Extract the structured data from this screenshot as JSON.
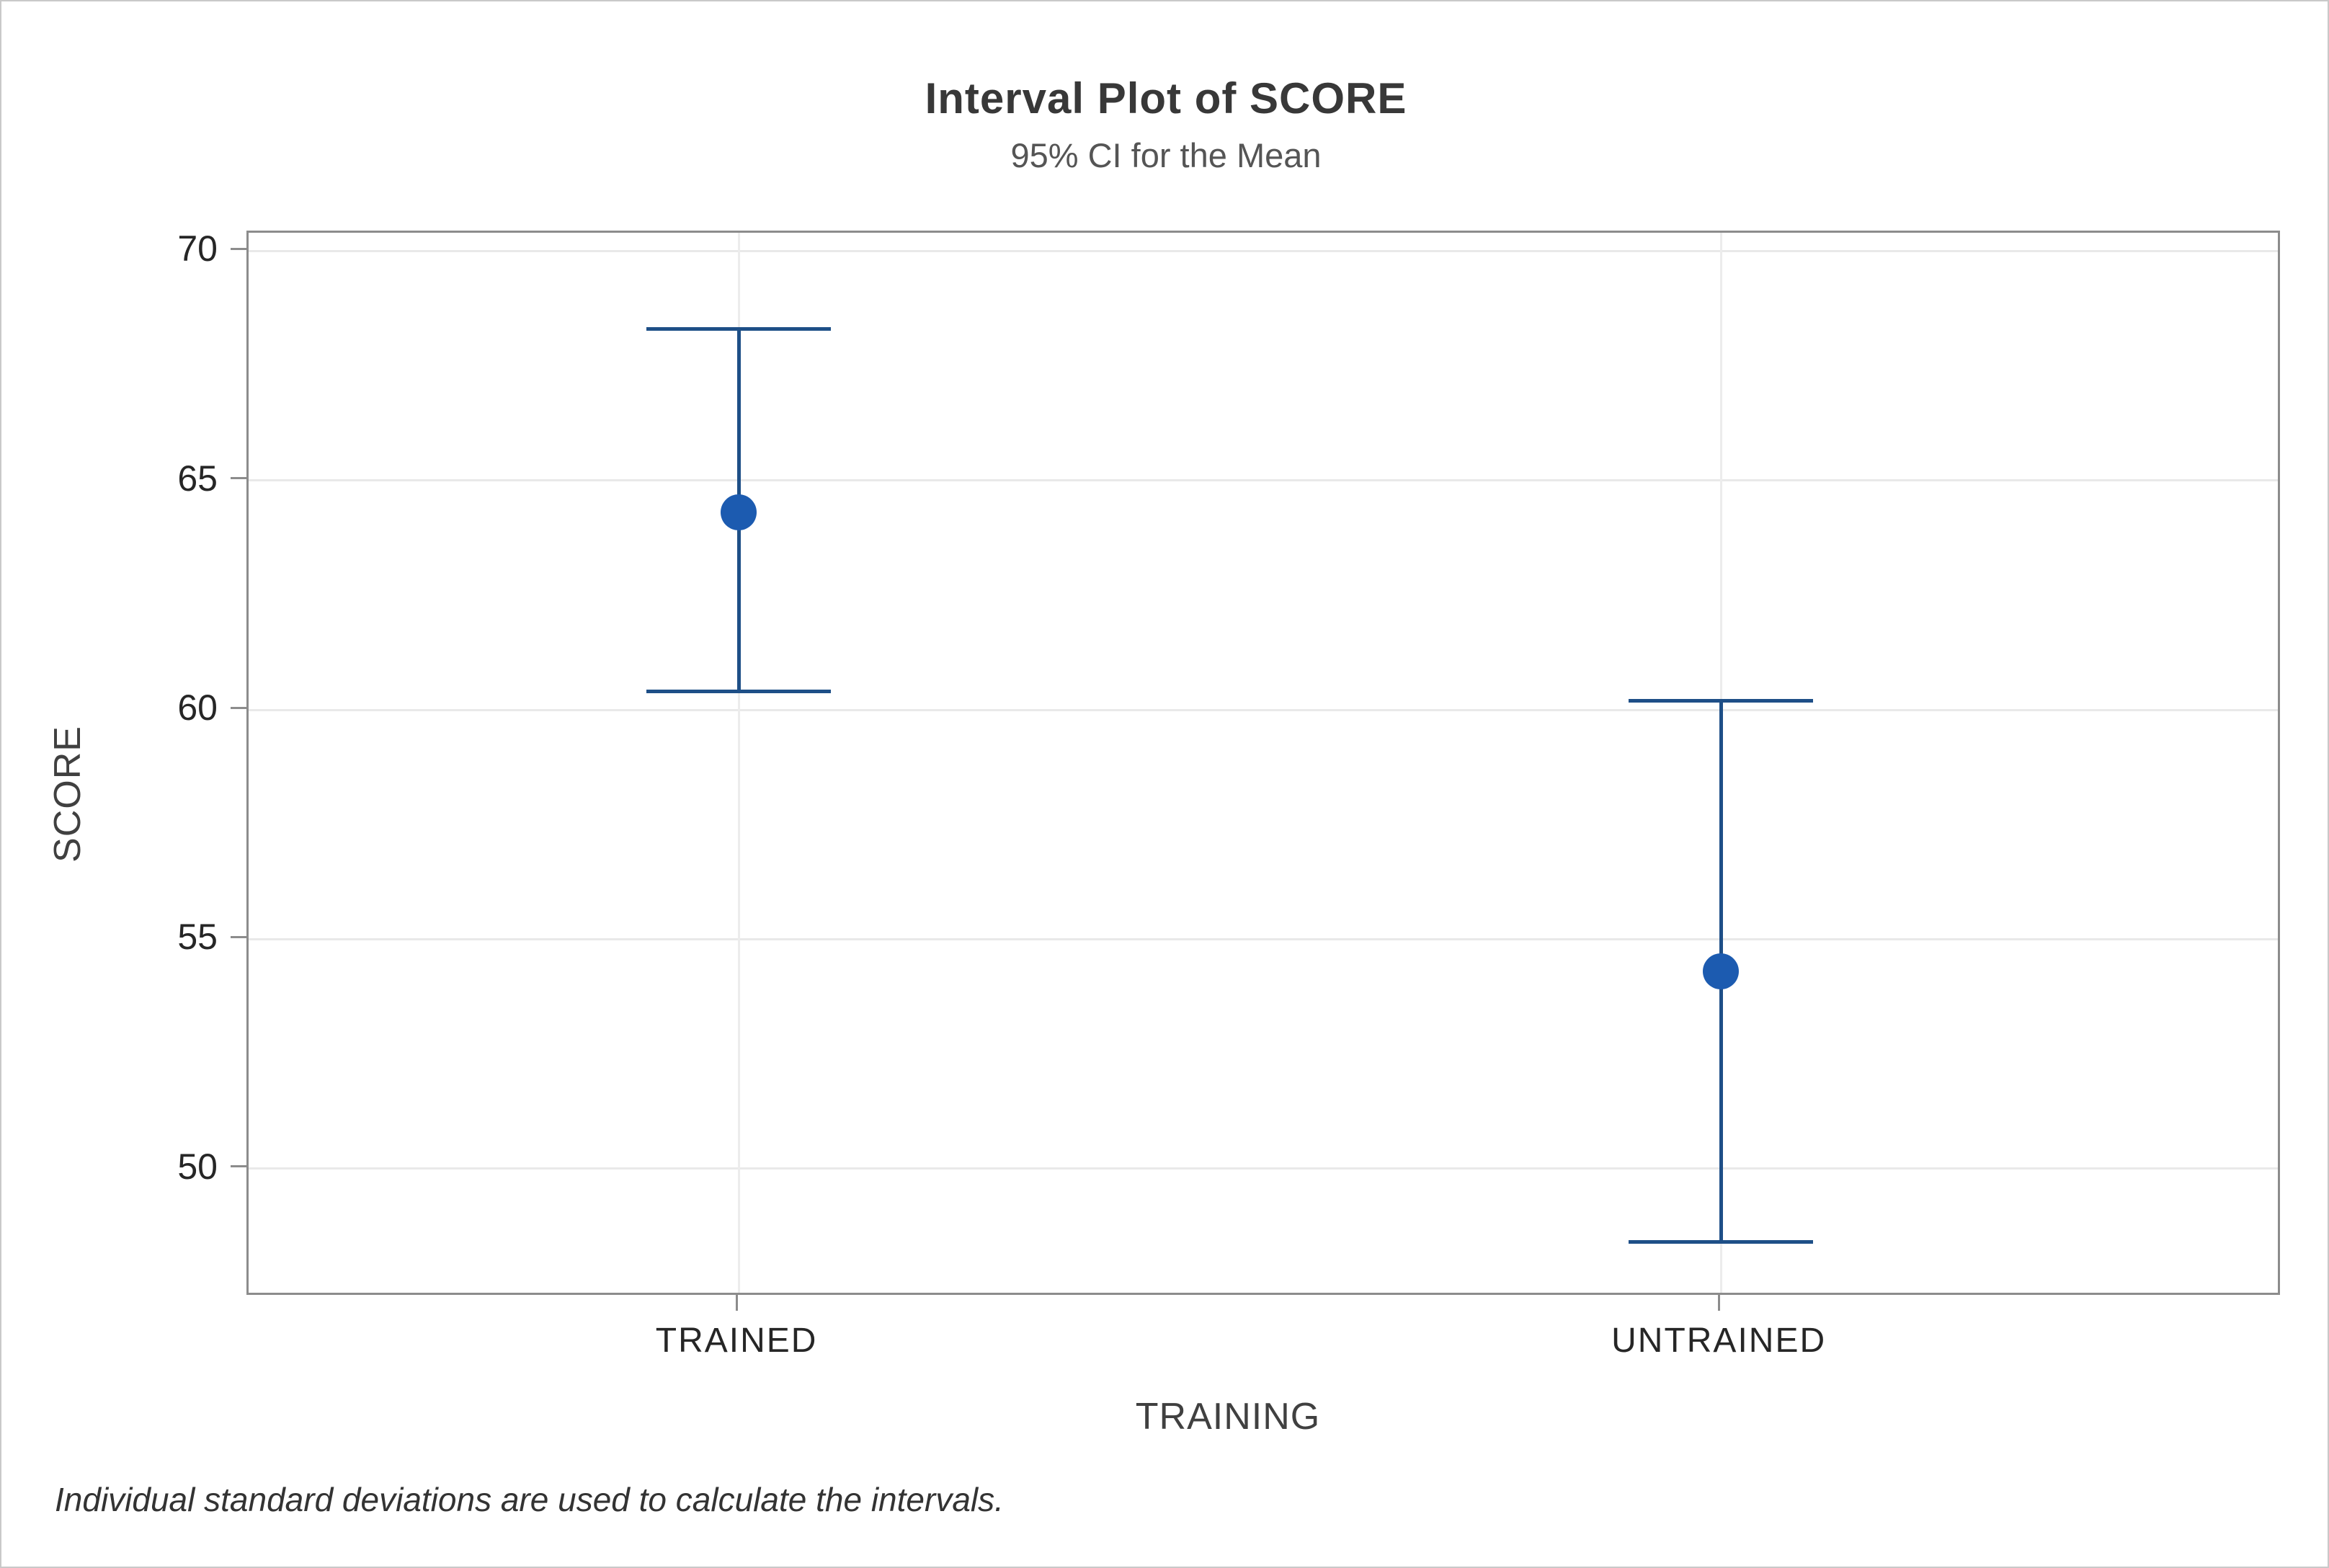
{
  "chart_data": {
    "type": "interval",
    "title": "Interval Plot of SCORE",
    "subtitle": "95% CI for the Mean",
    "xlabel": "TRAINING",
    "ylabel": "SCORE",
    "categories": [
      "TRAINED",
      "UNTRAINED"
    ],
    "points": [
      {
        "category": "TRAINED",
        "mean": 64.3,
        "ci_lower": 60.4,
        "ci_upper": 68.3
      },
      {
        "category": "UNTRAINED",
        "mean": 54.3,
        "ci_lower": 48.4,
        "ci_upper": 60.2
      }
    ],
    "y_axis": {
      "min": 47.2,
      "max": 70.4,
      "ticks": [
        70,
        65,
        60,
        55,
        50
      ]
    },
    "grid": true,
    "legend": "none",
    "footnote": "Individual standard deviations are used to calculate the intervals.",
    "colors": {
      "interval_line": "#1e4f87",
      "marker_fill": "#1c5bb0",
      "gridline": "#e9e9e9",
      "frame": "#8c8c8c"
    }
  }
}
